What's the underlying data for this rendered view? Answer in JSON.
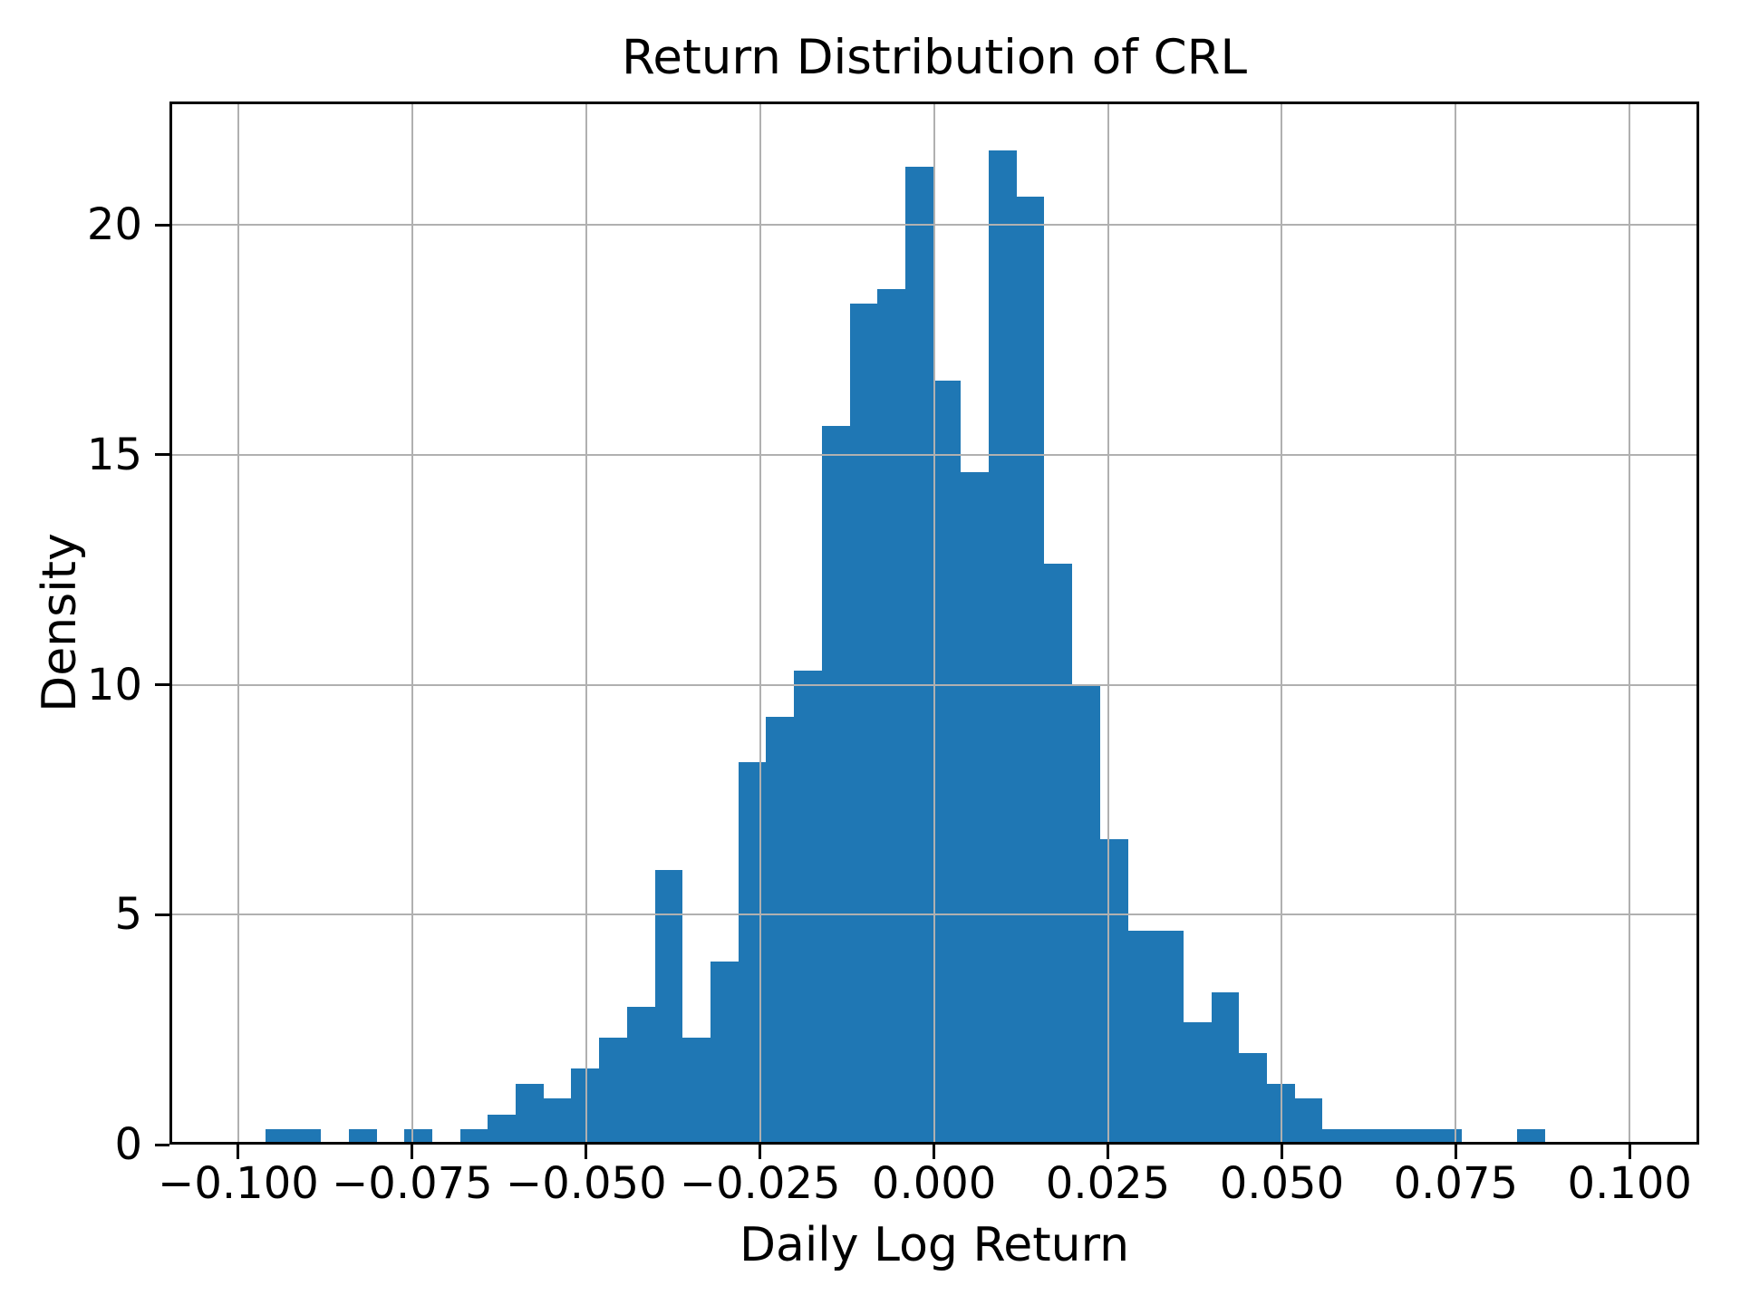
{
  "chart_data": {
    "type": "bar",
    "chart_kind": "histogram",
    "title": "Return Distribution of CRL",
    "xlabel": "Daily Log Return",
    "ylabel": "Density",
    "bar_color": "#1f77b4",
    "grid_color": "#b0b0b0",
    "grid": true,
    "legend": "none",
    "xlim": [
      -0.1099,
      0.11
    ],
    "ylim": [
      0,
      22.68
    ],
    "bin_width": 0.004,
    "bin_left_edges": [
      -0.09613,
      -0.09213,
      -0.08813,
      -0.08413,
      -0.08013,
      -0.07613,
      -0.07213,
      -0.06813,
      -0.06413,
      -0.06013,
      -0.05613,
      -0.05213,
      -0.04813,
      -0.04413,
      -0.04013,
      -0.03613,
      -0.03213,
      -0.02813,
      -0.02413,
      -0.02013,
      -0.01613,
      -0.01213,
      -0.00813,
      -0.00413,
      -0.00013,
      0.00387,
      0.00787,
      0.01187,
      0.01587,
      0.01987,
      0.02387,
      0.02787,
      0.03187,
      0.03587,
      0.03987,
      0.04387,
      0.04787,
      0.05187,
      0.05587,
      0.05987,
      0.06387,
      0.06787,
      0.07187,
      0.07587,
      0.07987,
      0.08387
    ],
    "densities": [
      0.33,
      0.33,
      0,
      0.33,
      0,
      0.33,
      0,
      0.33,
      0.66,
      1.33,
      1.0,
      1.66,
      2.33,
      2.99,
      5.98,
      2.33,
      3.99,
      8.31,
      9.31,
      10.3,
      15.62,
      18.28,
      18.61,
      21.27,
      16.62,
      14.63,
      21.61,
      20.61,
      12.63,
      9.97,
      6.65,
      4.65,
      4.65,
      2.66,
      3.32,
      1.99,
      1.33,
      1.0,
      0.33,
      0.33,
      0.33,
      0.33,
      0.33,
      0,
      0,
      0.33
    ],
    "xticks": {
      "values": [
        -0.1,
        -0.075,
        -0.05,
        -0.025,
        0.0,
        0.025,
        0.05,
        0.075,
        0.1
      ],
      "labels": [
        "−0.100",
        "−0.075",
        "−0.050",
        "−0.025",
        "0.000",
        "0.025",
        "0.050",
        "0.075",
        "0.100"
      ]
    },
    "yticks": {
      "values": [
        0,
        5,
        10,
        15,
        20
      ],
      "labels": [
        "0",
        "5",
        "10",
        "15",
        "20"
      ]
    }
  }
}
